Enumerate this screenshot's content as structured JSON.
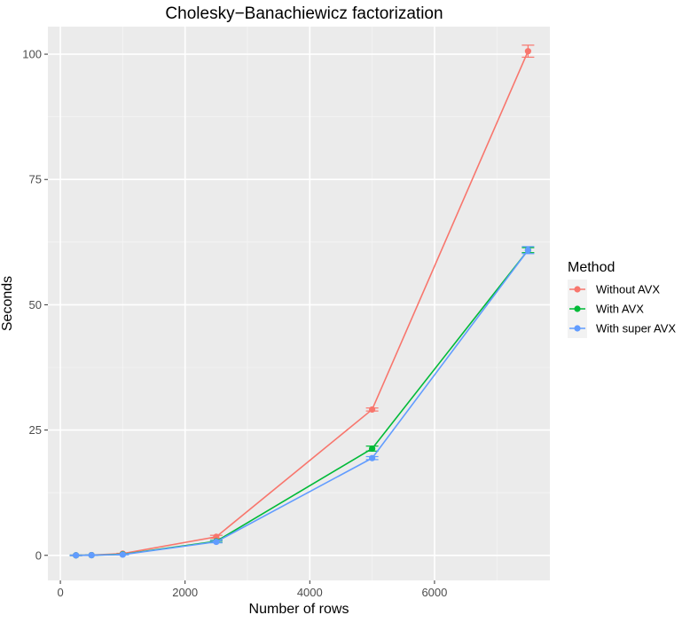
{
  "chart_data": {
    "type": "line",
    "title": "Cholesky−Banachiewicz factorization",
    "xlabel": "Number of rows",
    "ylabel": "Seconds",
    "xlim": [
      -200,
      7850
    ],
    "ylim": [
      -5,
      105.5
    ],
    "x_ticks": [
      0,
      2000,
      4000,
      6000
    ],
    "y_ticks": [
      0,
      25,
      50,
      75,
      100
    ],
    "grid": true,
    "x": [
      250,
      500,
      1000,
      2500,
      5000,
      7500
    ],
    "legend": {
      "title": "Method",
      "placement": "right"
    },
    "series": [
      {
        "name": "Without AVX",
        "color": "#f8766d",
        "values": [
          0.0,
          0.05,
          0.35,
          3.7,
          29.1,
          100.6
        ],
        "err": [
          0.05,
          0.05,
          0.05,
          0.3,
          0.3,
          1.2
        ]
      },
      {
        "name": "With AVX",
        "color": "#00ba38",
        "values": [
          0.0,
          0.04,
          0.2,
          2.8,
          21.3,
          60.9
        ],
        "err": [
          0.05,
          0.05,
          0.05,
          0.2,
          0.5,
          0.5
        ]
      },
      {
        "name": "With super AVX",
        "color": "#619cff",
        "values": [
          0.0,
          0.03,
          0.15,
          2.7,
          19.4,
          60.9
        ],
        "err": [
          0.05,
          0.05,
          0.05,
          0.2,
          0.3,
          0.7
        ]
      }
    ]
  }
}
